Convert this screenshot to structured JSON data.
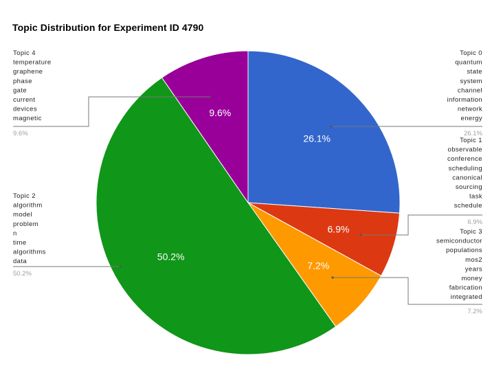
{
  "chart_data": {
    "type": "pie",
    "title": "Topic Distribution for Experiment ID 4790",
    "slices": [
      {
        "name": "Topic 0",
        "words": [
          "quantum",
          "state",
          "system",
          "channel",
          "information",
          "network",
          "energy"
        ],
        "value": 26.1,
        "label": "26.1%",
        "color": "#3366cc"
      },
      {
        "name": "Topic 1",
        "words": [
          "observable",
          "conference",
          "scheduling",
          "canonical",
          "sourcing",
          "task",
          "schedule"
        ],
        "value": 6.9,
        "label": "6.9%",
        "color": "#dc3912"
      },
      {
        "name": "Topic 3",
        "words": [
          "semiconductor",
          "populations",
          "mos2",
          "years",
          "money",
          "fabrication",
          "integrated"
        ],
        "value": 7.2,
        "label": "7.2%",
        "color": "#ff9900"
      },
      {
        "name": "Topic 2",
        "words": [
          "algorithm",
          "model",
          "problem",
          "n",
          "time",
          "algorithms",
          "data"
        ],
        "value": 50.2,
        "label": "50.2%",
        "color": "#109618"
      },
      {
        "name": "Topic 4",
        "words": [
          "temperature",
          "graphene",
          "phase",
          "gate",
          "current",
          "devices",
          "magnetic"
        ],
        "value": 9.6,
        "label": "9.6%",
        "color": "#990099"
      }
    ],
    "legend_placement": "labeled callouts"
  }
}
